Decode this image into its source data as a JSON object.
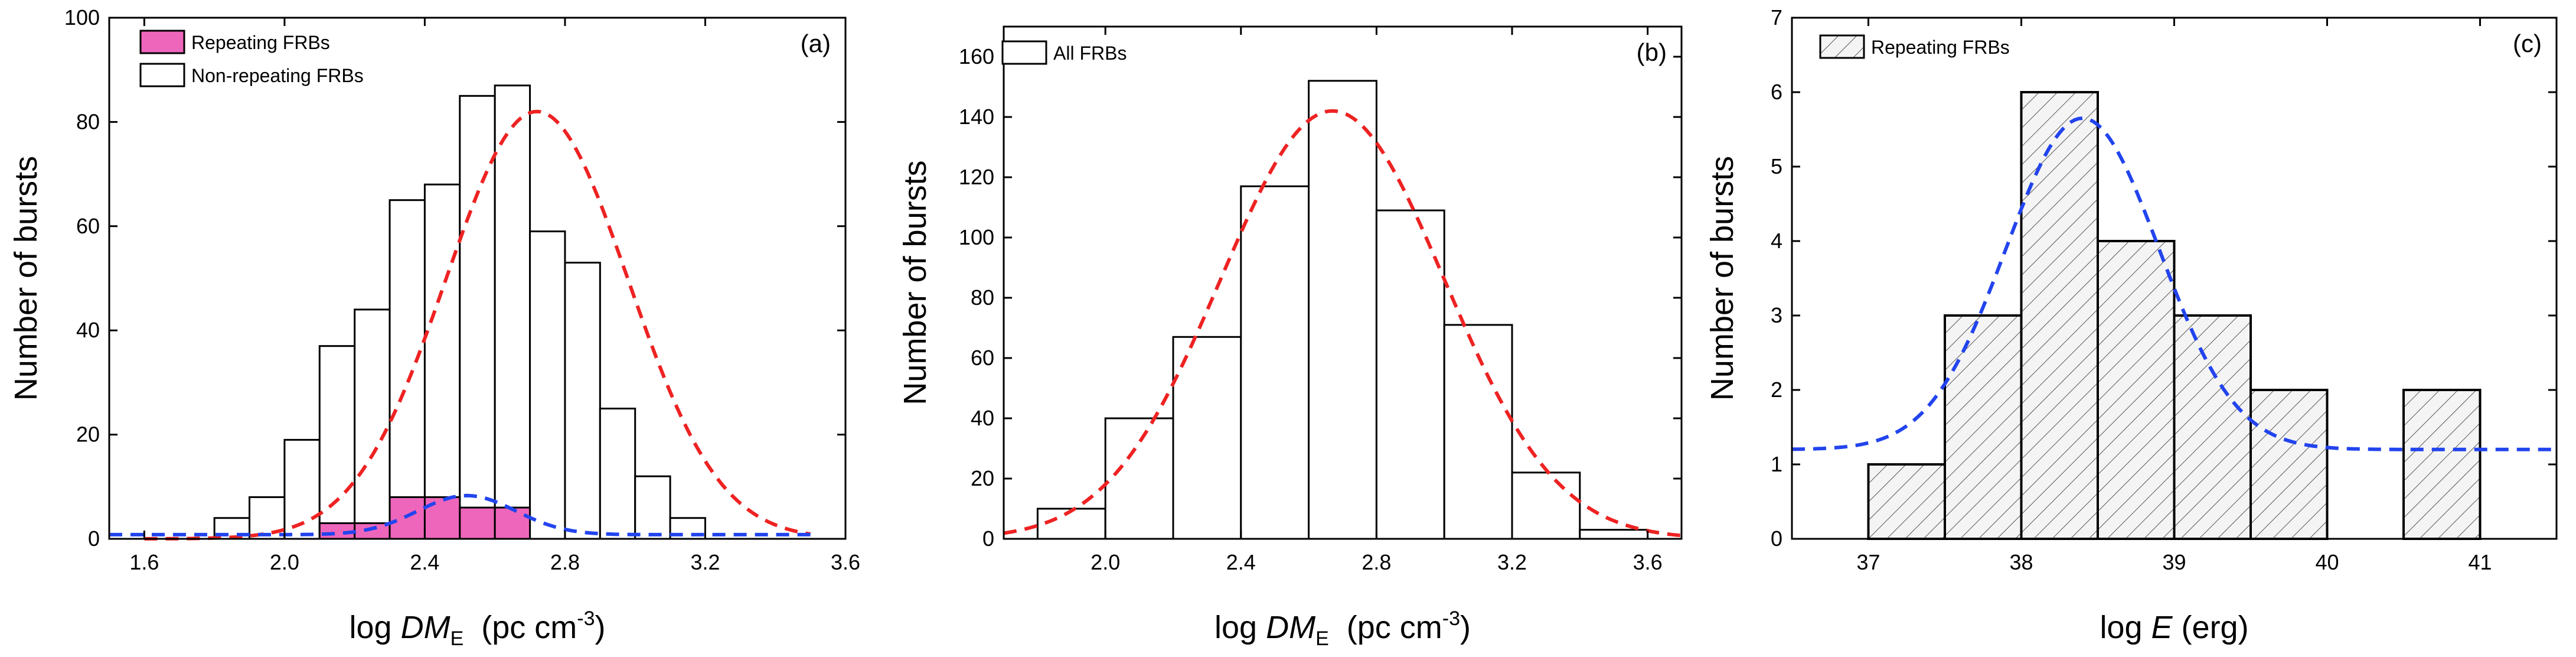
{
  "chart_data": [
    {
      "type": "bar",
      "panel_label": "(a)",
      "xlabel": {
        "prefix": "log ",
        "italic": "DM",
        "sub": "E",
        "unit_text": "  (pc cm",
        "sup": "-3",
        "close": ")"
      },
      "ylabel": "Number of bursts",
      "xlim": [
        1.5,
        3.6
      ],
      "ylim": [
        0,
        100
      ],
      "xticks": [
        1.6,
        2.0,
        2.4,
        2.8,
        3.2,
        3.6
      ],
      "xtick_labels": [
        "1.6",
        "2.0",
        "2.4",
        "2.8",
        "3.2",
        "3.6"
      ],
      "yticks": [
        0,
        20,
        40,
        60,
        80,
        100
      ],
      "ytick_labels": [
        "0",
        "20",
        "40",
        "60",
        "80",
        "100"
      ],
      "legend": [
        {
          "label": "Repeating FRBs",
          "style": "filled",
          "color": "#ee66bb"
        },
        {
          "label": "Non-repeating FRBs",
          "style": "outline"
        }
      ],
      "series": [
        {
          "name": "Non-repeating FRBs",
          "bin_width": 0.1,
          "bin_starts": [
            1.8,
            1.9,
            2.0,
            2.1,
            2.2,
            2.3,
            2.4,
            2.5,
            2.6,
            2.7,
            2.8,
            2.9,
            3.0,
            3.1,
            3.2,
            3.3
          ],
          "values": [
            4,
            8,
            19,
            37,
            44,
            65,
            68,
            85,
            87,
            59,
            53,
            25,
            12,
            4,
            0,
            0
          ],
          "fill": "none"
        },
        {
          "name": "Repeating FRBs",
          "bin_width": 0.1,
          "bin_starts": [
            2.1,
            2.2,
            2.3,
            2.4,
            2.5,
            2.6,
            2.7
          ],
          "values": [
            3,
            3,
            8,
            8,
            6,
            6,
            0
          ],
          "fill": "#ee66bb"
        }
      ],
      "fits": [
        {
          "name": "non-repeating fit",
          "color": "#ee2222",
          "form": "gaussian",
          "amplitude": 82,
          "mean": 2.72,
          "sigma": 0.26,
          "offset": 0,
          "x_range": [
            1.6,
            3.5
          ]
        },
        {
          "name": "repeating fit",
          "color": "#2244ee",
          "form": "gaussian",
          "amplitude": 7.5,
          "mean": 2.52,
          "sigma": 0.14,
          "offset": 0.8,
          "x_range": [
            1.5,
            3.5
          ]
        }
      ]
    },
    {
      "type": "bar",
      "panel_label": "(b)",
      "xlabel": {
        "prefix": "log ",
        "italic": "DM",
        "sub": "E",
        "unit_text": "  (pc cm",
        "sup": "-3",
        "close": ")"
      },
      "ylabel": "Number of bursts",
      "xlim": [
        1.7,
        3.7
      ],
      "ylim": [
        0,
        170
      ],
      "xticks": [
        2.0,
        2.4,
        2.8,
        3.2,
        3.6
      ],
      "xtick_labels": [
        "2.0",
        "2.4",
        "2.8",
        "3.2",
        "3.6"
      ],
      "yticks": [
        0,
        20,
        40,
        60,
        80,
        100,
        120,
        140,
        160
      ],
      "ytick_labels": [
        "0",
        "20",
        "40",
        "60",
        "80",
        "100",
        "120",
        "140",
        "160"
      ],
      "legend": [
        {
          "label": "All FRBs",
          "style": "outline"
        }
      ],
      "series": [
        {
          "name": "All FRBs",
          "bin_width": 0.2,
          "bin_starts": [
            1.8,
            2.0,
            2.2,
            2.4,
            2.6,
            2.8,
            3.0,
            3.2,
            3.4
          ],
          "values": [
            10,
            40,
            67,
            117,
            152,
            109,
            71,
            22,
            3
          ],
          "fill": "none"
        }
      ],
      "fits": [
        {
          "name": "all fit",
          "color": "#ee2222",
          "form": "gaussian",
          "amplitude": 142,
          "mean": 2.67,
          "sigma": 0.33,
          "offset": 0,
          "x_range": [
            1.7,
            3.7
          ]
        }
      ]
    },
    {
      "type": "bar",
      "panel_label": "(c)",
      "xlabel": {
        "prefix": "log ",
        "italic": "E",
        "sub": "",
        "unit_text": " (erg)",
        "sup": "",
        "close": ""
      },
      "ylabel": "Number of bursts",
      "xlim": [
        36.5,
        41.5
      ],
      "ylim": [
        0,
        7
      ],
      "xticks": [
        37,
        38,
        39,
        40,
        41
      ],
      "xtick_labels": [
        "37",
        "38",
        "39",
        "40",
        "41"
      ],
      "yticks": [
        0,
        1,
        2,
        3,
        4,
        5,
        6,
        7
      ],
      "ytick_labels": [
        "0",
        "1",
        "2",
        "3",
        "4",
        "5",
        "6",
        "7"
      ],
      "legend": [
        {
          "label": "Repeating FRBs",
          "style": "hatched"
        }
      ],
      "series": [
        {
          "name": "Repeating FRBs",
          "bin_width": 0.5,
          "bin_starts": [
            37.0,
            37.5,
            38.0,
            38.5,
            39.0,
            39.5,
            40.0,
            40.5
          ],
          "values": [
            1,
            3,
            6,
            4,
            3,
            2,
            0,
            2
          ],
          "fill": "hatched"
        }
      ],
      "fits": [
        {
          "name": "repeating fit",
          "color": "#2244ee",
          "form": "gaussian",
          "amplitude": 4.45,
          "mean": 38.4,
          "sigma": 0.5,
          "offset": 1.2,
          "x_range": [
            36.5,
            41.5
          ]
        }
      ]
    }
  ]
}
